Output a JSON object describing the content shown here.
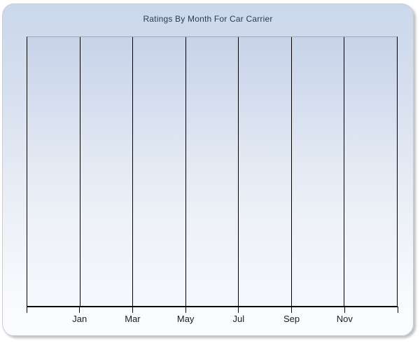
{
  "window": {
    "background": "#ffffff"
  },
  "panel": {
    "title": "Ratings By Month For Car Carrier",
    "title_color": "#2d3a54",
    "background_top": "#cbd8eb",
    "background_bottom": "#fbfcfe",
    "border_color": "#c9ccd4",
    "shadow_color": "#6e7480"
  },
  "plot": {
    "background_top": "#c7d3e8",
    "background_bottom": "#f5f8fc",
    "top_border_color": "#9fa9ba",
    "side_border_color": "#000000",
    "axis_line_color": "#000000",
    "gridline_color": "#000000"
  },
  "x_axis": {
    "tick_labels": [
      "Jan",
      "Mar",
      "May",
      "Jul",
      "Sep",
      "Nov"
    ],
    "label_color": "#1a1c22"
  },
  "chart_data": {
    "type": "line",
    "title": "Ratings By Month For Car Carrier",
    "x_tick_labels": [
      "Jan",
      "Mar",
      "May",
      "Jul",
      "Sep",
      "Nov"
    ],
    "y_tick_labels": [],
    "x_gridline_count": 8,
    "x_intervals": 7,
    "series": [],
    "plot_empty": true,
    "grid": "vertical-only",
    "legend": "none"
  }
}
